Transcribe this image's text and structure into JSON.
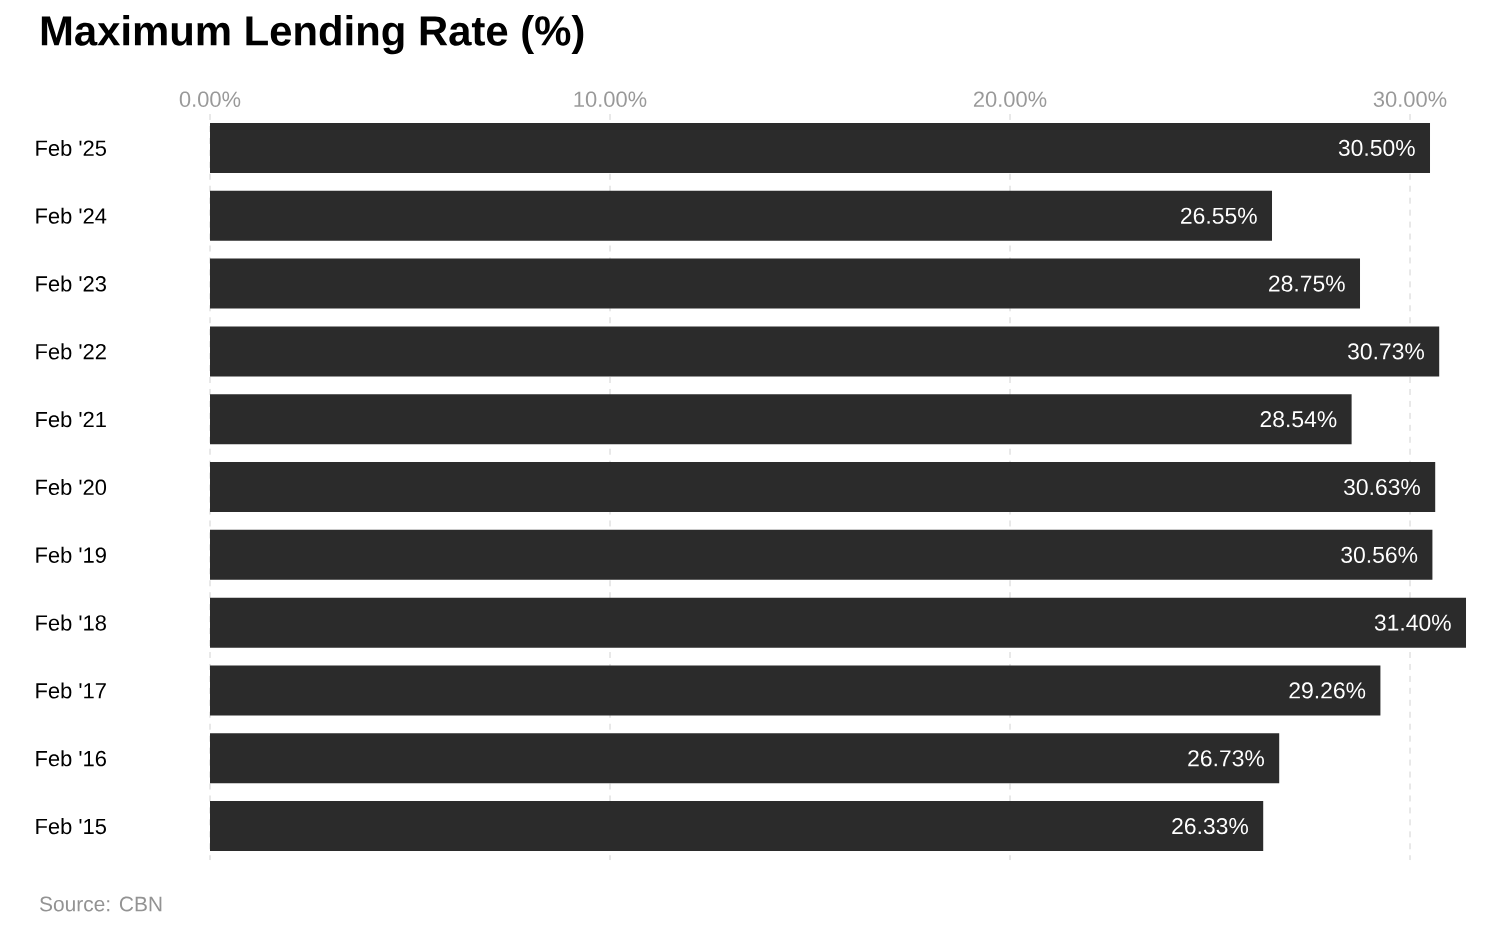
{
  "chart_data": {
    "type": "bar",
    "orientation": "horizontal",
    "title": "Maximum Lending Rate (%)",
    "categories": [
      "Feb '25",
      "Feb '24",
      "Feb '23",
      "Feb '22",
      "Feb '21",
      "Feb '20",
      "Feb '19",
      "Feb '18",
      "Feb '17",
      "Feb '16",
      "Feb '15"
    ],
    "values": [
      30.5,
      26.55,
      28.75,
      30.73,
      28.54,
      30.63,
      30.56,
      31.4,
      29.26,
      26.73,
      26.33
    ],
    "value_labels": [
      "30.50%",
      "26.55%",
      "28.75%",
      "30.73%",
      "28.54%",
      "30.63%",
      "30.56%",
      "31.40%",
      "29.26%",
      "26.73%",
      "26.33%"
    ],
    "color": "#2b2b2b",
    "xlim": [
      0,
      31.4
    ],
    "xticks": [
      {
        "value": 0,
        "label": "0.00%"
      },
      {
        "value": 10,
        "label": "10.00%"
      },
      {
        "value": 20,
        "label": "20.00%"
      },
      {
        "value": 30,
        "label": "30.00%"
      }
    ],
    "grid": "x",
    "annotations": [
      "Source: CBN"
    ]
  }
}
